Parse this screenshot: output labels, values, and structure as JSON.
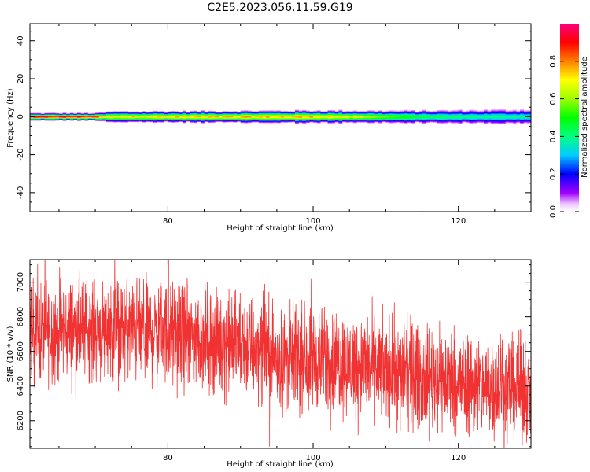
{
  "title": "C2E5.2023.056.11.59.G19",
  "chart_data": [
    {
      "type": "heatmap",
      "xlabel": "Height of straight line (km)",
      "ylabel": "Frequency (Hz)",
      "xlim": [
        61,
        130
      ],
      "ylim": [
        -50,
        49
      ],
      "x_ticks": [
        "80",
        "100",
        "120"
      ],
      "y_ticks": [
        "40",
        "20",
        "0",
        "-20",
        "-40"
      ],
      "colorbar": {
        "label": "Normalized spectral amplitude",
        "range": [
          0,
          1
        ],
        "ticks": [
          "0.0",
          "0.2",
          "0.4",
          "0.6",
          "0.8"
        ],
        "colormap": "hsv (purple-blue-cyan-green-yellow-red-pink)"
      },
      "band_center_hz": 0,
      "band_halfwidth_hz": [
        [
          61,
          2
        ],
        [
          70,
          2
        ],
        [
          72,
          3
        ],
        [
          100,
          3.5
        ],
        [
          110,
          3.5
        ],
        [
          120,
          4
        ],
        [
          130,
          4.5
        ]
      ],
      "peak_amplitude": [
        [
          61,
          0.9
        ],
        [
          70,
          0.88
        ],
        [
          71,
          0.7
        ],
        [
          80,
          0.72
        ],
        [
          100,
          0.75
        ],
        [
          108,
          0.6
        ],
        [
          115,
          0.45
        ],
        [
          122,
          0.4
        ],
        [
          130,
          0.38
        ]
      ]
    },
    {
      "type": "line",
      "xlabel": "Height of straight line (km)",
      "ylabel": "SNR (10 * v/v)",
      "xlim": [
        61,
        130
      ],
      "ylim": [
        6040,
        7130
      ],
      "x_ticks": [
        "80",
        "100",
        "120"
      ],
      "y_ticks": [
        "7000",
        "6800",
        "6600",
        "6400",
        "6200"
      ],
      "color": "#f03232",
      "series": [
        {
          "x": [
            61,
            70,
            80,
            90,
            94,
            95,
            100,
            110,
            120,
            130
          ],
          "y": [
            6720,
            6730,
            6700,
            6640,
            6600,
            6550,
            6560,
            6500,
            6420,
            6380
          ]
        }
      ],
      "noise_amplitude": 320,
      "spikes": [
        [
          80.1,
          7130
        ],
        [
          94.0,
          6050
        ],
        [
          94.5,
          6820
        ],
        [
          116,
          6080
        ],
        [
          112,
          6140
        ]
      ]
    }
  ]
}
